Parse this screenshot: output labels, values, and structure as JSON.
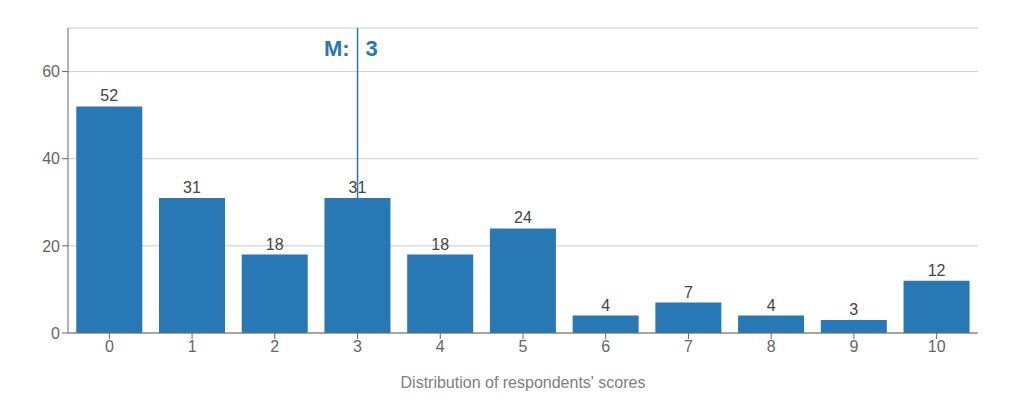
{
  "chart_data": {
    "type": "bar",
    "xlabel": "Distribution of respondents' scores",
    "categories": [
      0,
      1,
      2,
      3,
      4,
      5,
      6,
      7,
      8,
      9,
      10
    ],
    "values": [
      52,
      31,
      18,
      31,
      18,
      24,
      4,
      7,
      4,
      3,
      12
    ],
    "color": "#2878B5",
    "ylim": [
      0,
      70
    ],
    "yticks": [
      0,
      20,
      40,
      60
    ],
    "grid": true,
    "data_labels": true,
    "median": 3,
    "annotations": [
      "M:",
      "3"
    ]
  }
}
